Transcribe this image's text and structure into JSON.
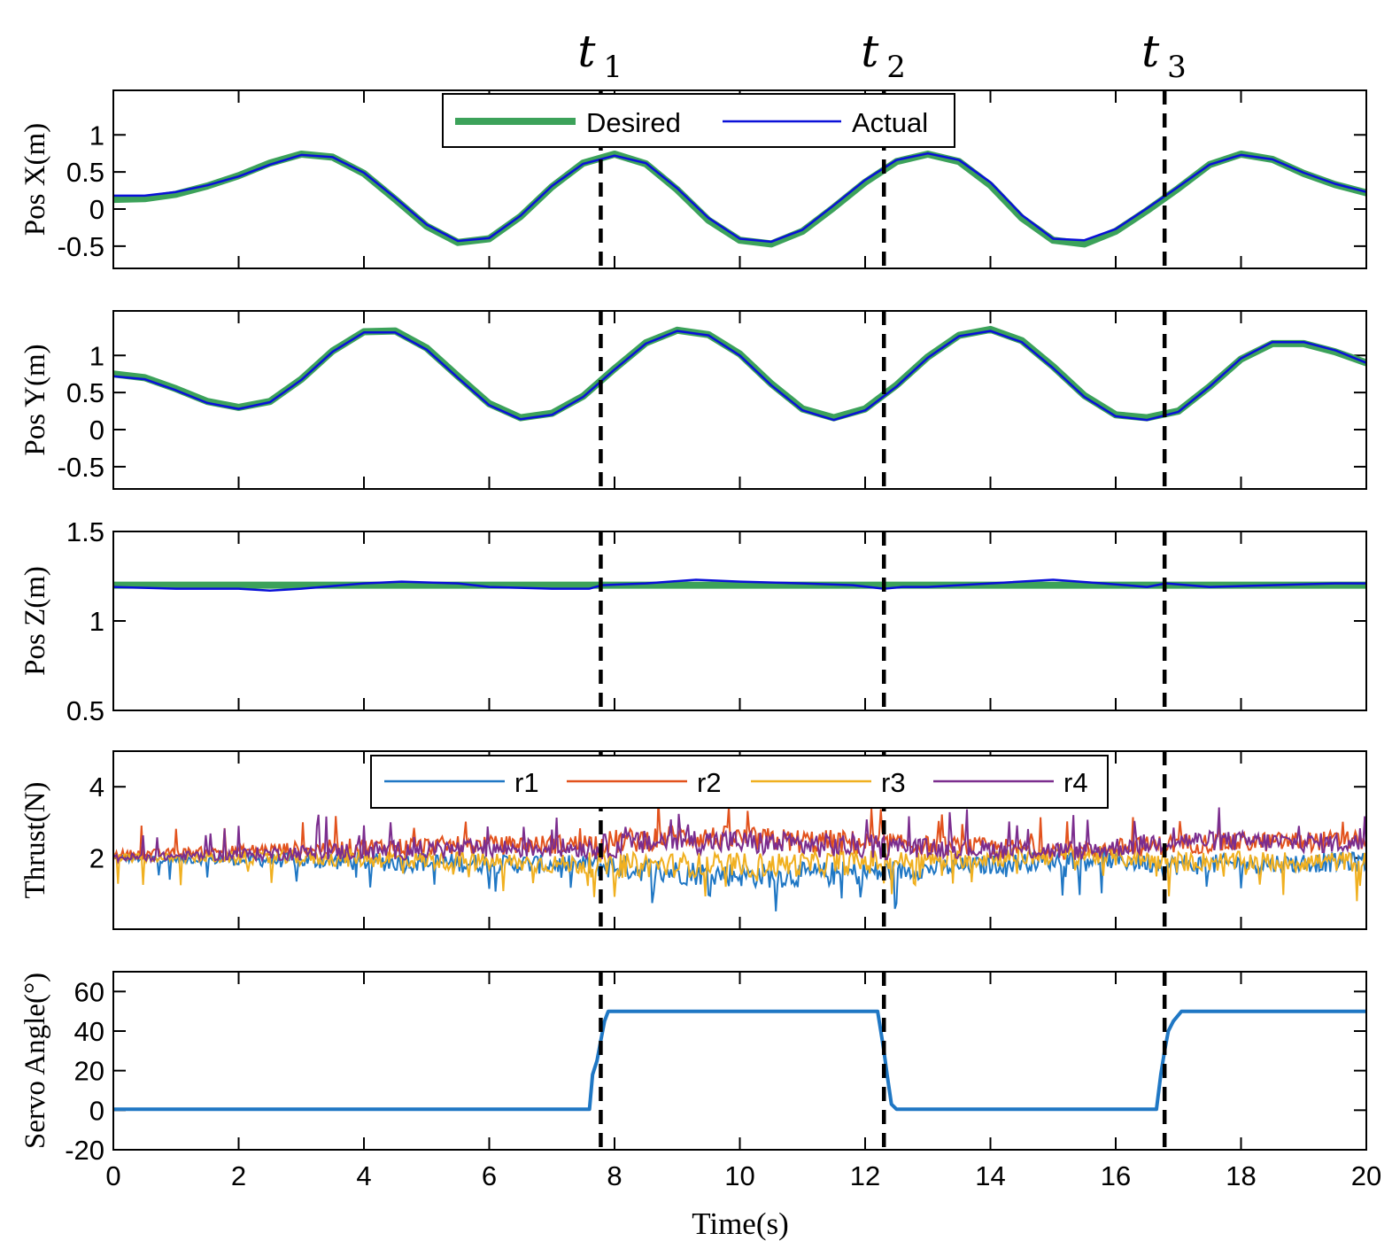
{
  "chart_data": [
    {
      "id": "posx",
      "type": "line",
      "ylabel": "Pos X(m)",
      "xlim": [
        0,
        20
      ],
      "ylim": [
        -0.8,
        1.6
      ],
      "yticks": [
        -0.5,
        0,
        0.5,
        1
      ],
      "ytick_labels": [
        "-0.5",
        "0",
        "0.5",
        "1"
      ],
      "legend": {
        "placement": "top-center",
        "entries": [
          "Desired",
          "Actual"
        ]
      },
      "series": [
        {
          "name": "Desired",
          "color": "#3ca25a",
          "x": [
            0,
            0.5,
            1,
            1.5,
            2,
            2.5,
            3,
            3.5,
            4,
            4.5,
            5,
            5.5,
            6,
            6.5,
            7,
            7.5,
            8,
            8.5,
            9,
            9.5,
            10,
            10.5,
            11,
            11.5,
            12,
            12.5,
            13,
            13.5,
            14,
            14.5,
            15,
            15.5,
            16,
            16.5,
            17,
            17.5,
            18,
            18.5,
            19,
            19.5,
            20
          ],
          "y": [
            0.13,
            0.14,
            0.2,
            0.31,
            0.45,
            0.62,
            0.74,
            0.7,
            0.48,
            0.13,
            -0.23,
            -0.45,
            -0.4,
            -0.1,
            0.3,
            0.62,
            0.74,
            0.61,
            0.26,
            -0.15,
            -0.42,
            -0.47,
            -0.3,
            0.02,
            0.36,
            0.64,
            0.74,
            0.64,
            0.32,
            -0.12,
            -0.42,
            -0.47,
            -0.3,
            -0.02,
            0.28,
            0.6,
            0.74,
            0.67,
            0.48,
            0.33,
            0.22
          ]
        },
        {
          "name": "Actual",
          "color": "#0a10d8",
          "x": [
            0,
            0.5,
            1,
            1.5,
            2,
            2.5,
            3,
            3.5,
            4,
            4.5,
            5,
            5.5,
            6,
            6.5,
            7,
            7.5,
            8,
            8.5,
            9,
            9.5,
            10,
            10.5,
            11,
            11.5,
            12,
            12.5,
            13,
            13.5,
            14,
            14.5,
            15,
            15.5,
            16,
            16.5,
            17,
            17.5,
            18,
            18.5,
            19,
            19.5,
            20
          ],
          "y": [
            0.18,
            0.18,
            0.23,
            0.32,
            0.44,
            0.6,
            0.73,
            0.7,
            0.49,
            0.15,
            -0.21,
            -0.43,
            -0.39,
            -0.09,
            0.31,
            0.61,
            0.72,
            0.62,
            0.28,
            -0.12,
            -0.4,
            -0.44,
            -0.28,
            0.05,
            0.39,
            0.66,
            0.75,
            0.66,
            0.36,
            -0.08,
            -0.4,
            -0.42,
            -0.27,
            0.01,
            0.3,
            0.6,
            0.73,
            0.67,
            0.49,
            0.34,
            0.23
          ]
        }
      ]
    },
    {
      "id": "posy",
      "type": "line",
      "ylabel": "Pos Y(m)",
      "xlim": [
        0,
        20
      ],
      "ylim": [
        -0.8,
        1.6
      ],
      "yticks": [
        -0.5,
        0,
        0.5,
        1
      ],
      "ytick_labels": [
        "-0.5",
        "0",
        "0.5",
        "1"
      ],
      "series": [
        {
          "name": "Desired",
          "color": "#3ca25a",
          "x": [
            0,
            0.5,
            1,
            1.5,
            2,
            2.5,
            3,
            3.5,
            4,
            4.5,
            5,
            5.5,
            6,
            6.5,
            7,
            7.5,
            8,
            8.5,
            9,
            9.5,
            10,
            10.5,
            11,
            11.5,
            12,
            12.5,
            13,
            13.5,
            14,
            14.5,
            15,
            15.5,
            16,
            16.5,
            17,
            17.5,
            18,
            18.5,
            19,
            19.5,
            20
          ],
          "y": [
            0.75,
            0.7,
            0.55,
            0.38,
            0.3,
            0.38,
            0.68,
            1.06,
            1.32,
            1.33,
            1.1,
            0.72,
            0.35,
            0.16,
            0.22,
            0.45,
            0.82,
            1.17,
            1.34,
            1.28,
            1.02,
            0.62,
            0.28,
            0.16,
            0.28,
            0.6,
            0.98,
            1.27,
            1.35,
            1.2,
            0.85,
            0.46,
            0.2,
            0.16,
            0.25,
            0.58,
            0.95,
            1.16,
            1.16,
            1.05,
            0.9
          ]
        },
        {
          "name": "Actual",
          "color": "#0a10d8",
          "x": [
            0,
            0.5,
            1,
            1.5,
            2,
            2.5,
            3,
            3.5,
            4,
            4.5,
            5,
            5.5,
            6,
            6.5,
            7,
            7.5,
            8,
            8.5,
            9,
            9.5,
            10,
            10.5,
            11,
            11.5,
            12,
            12.5,
            13,
            13.5,
            14,
            14.5,
            15,
            15.5,
            16,
            16.5,
            17,
            17.5,
            18,
            18.5,
            19,
            19.5,
            20
          ],
          "y": [
            0.72,
            0.68,
            0.53,
            0.36,
            0.28,
            0.37,
            0.67,
            1.05,
            1.31,
            1.31,
            1.08,
            0.7,
            0.33,
            0.14,
            0.2,
            0.44,
            0.81,
            1.16,
            1.33,
            1.27,
            1.0,
            0.6,
            0.26,
            0.13,
            0.26,
            0.58,
            0.97,
            1.26,
            1.33,
            1.18,
            0.83,
            0.44,
            0.18,
            0.13,
            0.24,
            0.58,
            0.96,
            1.18,
            1.18,
            1.07,
            0.9
          ]
        }
      ]
    },
    {
      "id": "posz",
      "type": "line",
      "ylabel": "Pos Z(m)",
      "xlim": [
        0,
        20
      ],
      "ylim": [
        0.5,
        1.5
      ],
      "yticks": [
        0.5,
        1,
        1.5
      ],
      "ytick_labels": [
        "0.5",
        "1",
        "1.5"
      ],
      "series": [
        {
          "name": "Desired",
          "color": "#3ca25a",
          "x": [
            0,
            20
          ],
          "y": [
            1.2,
            1.2
          ]
        },
        {
          "name": "Actual",
          "color": "#0a10d8",
          "x": [
            0,
            1,
            2,
            2.5,
            3,
            4,
            4.6,
            5.5,
            6,
            7,
            7.6,
            7.8,
            8.5,
            9.3,
            10,
            11,
            11.8,
            12.3,
            12.6,
            13,
            14,
            15,
            15.8,
            16.5,
            16.8,
            17.5,
            18.5,
            19.5,
            20
          ],
          "y": [
            1.19,
            1.18,
            1.18,
            1.17,
            1.18,
            1.21,
            1.22,
            1.21,
            1.19,
            1.18,
            1.18,
            1.2,
            1.21,
            1.23,
            1.22,
            1.21,
            1.2,
            1.18,
            1.19,
            1.19,
            1.21,
            1.23,
            1.21,
            1.19,
            1.21,
            1.19,
            1.2,
            1.21,
            1.21
          ]
        }
      ]
    },
    {
      "id": "thrust",
      "type": "line",
      "ylabel": "Thrust(N)",
      "xlim": [
        0,
        20
      ],
      "ylim": [
        0,
        5
      ],
      "yticks": [
        2,
        4
      ],
      "ytick_labels": [
        "2",
        "4"
      ],
      "legend": {
        "placement": "top-center",
        "entries": [
          "r1",
          "r2",
          "r3",
          "r4"
        ]
      },
      "series": [
        {
          "name": "r1",
          "color": "#1f77c4",
          "x": [
            0,
            4,
            7.7,
            9,
            10.5,
            12.3,
            15.5,
            17,
            20
          ],
          "y": [
            2.0,
            1.9,
            1.8,
            1.6,
            1.5,
            1.6,
            2.0,
            1.8,
            1.9
          ]
        },
        {
          "name": "r2",
          "color": "#e2521d",
          "x": [
            0,
            4,
            7.7,
            9,
            10.5,
            12.3,
            15.5,
            17,
            20
          ],
          "y": [
            2.1,
            2.3,
            2.4,
            2.6,
            2.5,
            2.4,
            2.2,
            2.4,
            2.5
          ]
        },
        {
          "name": "r3",
          "color": "#f0b020",
          "x": [
            0,
            4,
            7.7,
            9,
            10.5,
            12.3,
            15.5,
            17,
            20
          ],
          "y": [
            2.0,
            2.0,
            1.8,
            1.8,
            1.8,
            1.9,
            2.1,
            1.9,
            1.9
          ]
        },
        {
          "name": "r4",
          "color": "#7b2d8e",
          "x": [
            0,
            4,
            7.7,
            9,
            10.5,
            12.3,
            15.5,
            17,
            20
          ],
          "y": [
            2.0,
            2.2,
            2.3,
            2.5,
            2.4,
            2.3,
            2.2,
            2.5,
            2.4
          ]
        }
      ]
    },
    {
      "id": "servo",
      "type": "line",
      "ylabel": "Servo Angle(°)",
      "xlabel": "Time(s)",
      "xlim": [
        0,
        20
      ],
      "ylim": [
        -20,
        70
      ],
      "yticks": [
        -20,
        0,
        20,
        40,
        60
      ],
      "ytick_labels": [
        "-20",
        "0",
        "20",
        "40",
        "60"
      ],
      "xticks": [
        0,
        2,
        4,
        6,
        8,
        10,
        12,
        14,
        16,
        18,
        20
      ],
      "xtick_labels": [
        "0",
        "2",
        "4",
        "6",
        "8",
        "10",
        "12",
        "14",
        "16",
        "18",
        "20"
      ],
      "series": [
        {
          "name": "Servo",
          "color": "#1f77c4",
          "x": [
            0,
            7.6,
            7.65,
            7.72,
            7.78,
            7.84,
            7.9,
            12.2,
            12.25,
            12.3,
            12.35,
            12.42,
            12.5,
            16.65,
            16.72,
            16.78,
            16.84,
            16.92,
            17.05,
            20
          ],
          "y": [
            0.5,
            0.5,
            18,
            25,
            35,
            45,
            50,
            50,
            40,
            30,
            18,
            3,
            0.5,
            0.5,
            18,
            30,
            40,
            45,
            50,
            50
          ]
        }
      ]
    }
  ],
  "markers": [
    {
      "x": 7.78,
      "label": "t",
      "sub": "1"
    },
    {
      "x": 12.3,
      "label": "t",
      "sub": "2"
    },
    {
      "x": 16.78,
      "label": "t",
      "sub": "3"
    }
  ]
}
